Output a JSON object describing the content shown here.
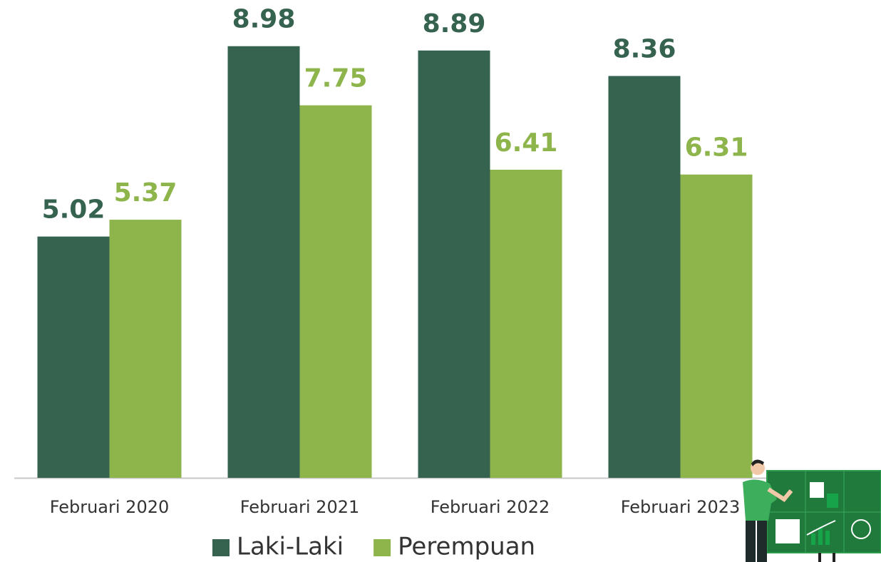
{
  "chart_data": {
    "type": "bar",
    "categories": [
      "Februari 2020",
      "Februari 2021",
      "Februari 2022",
      "Februari 2023"
    ],
    "series": [
      {
        "name": "Laki-Laki",
        "color": "#36634f",
        "values": [
          5.02,
          8.98,
          8.89,
          8.36
        ]
      },
      {
        "name": "Perempuan",
        "color": "#8db54b",
        "values": [
          5.37,
          7.75,
          6.41,
          6.31
        ]
      }
    ],
    "ylim": [
      0,
      10
    ]
  }
}
